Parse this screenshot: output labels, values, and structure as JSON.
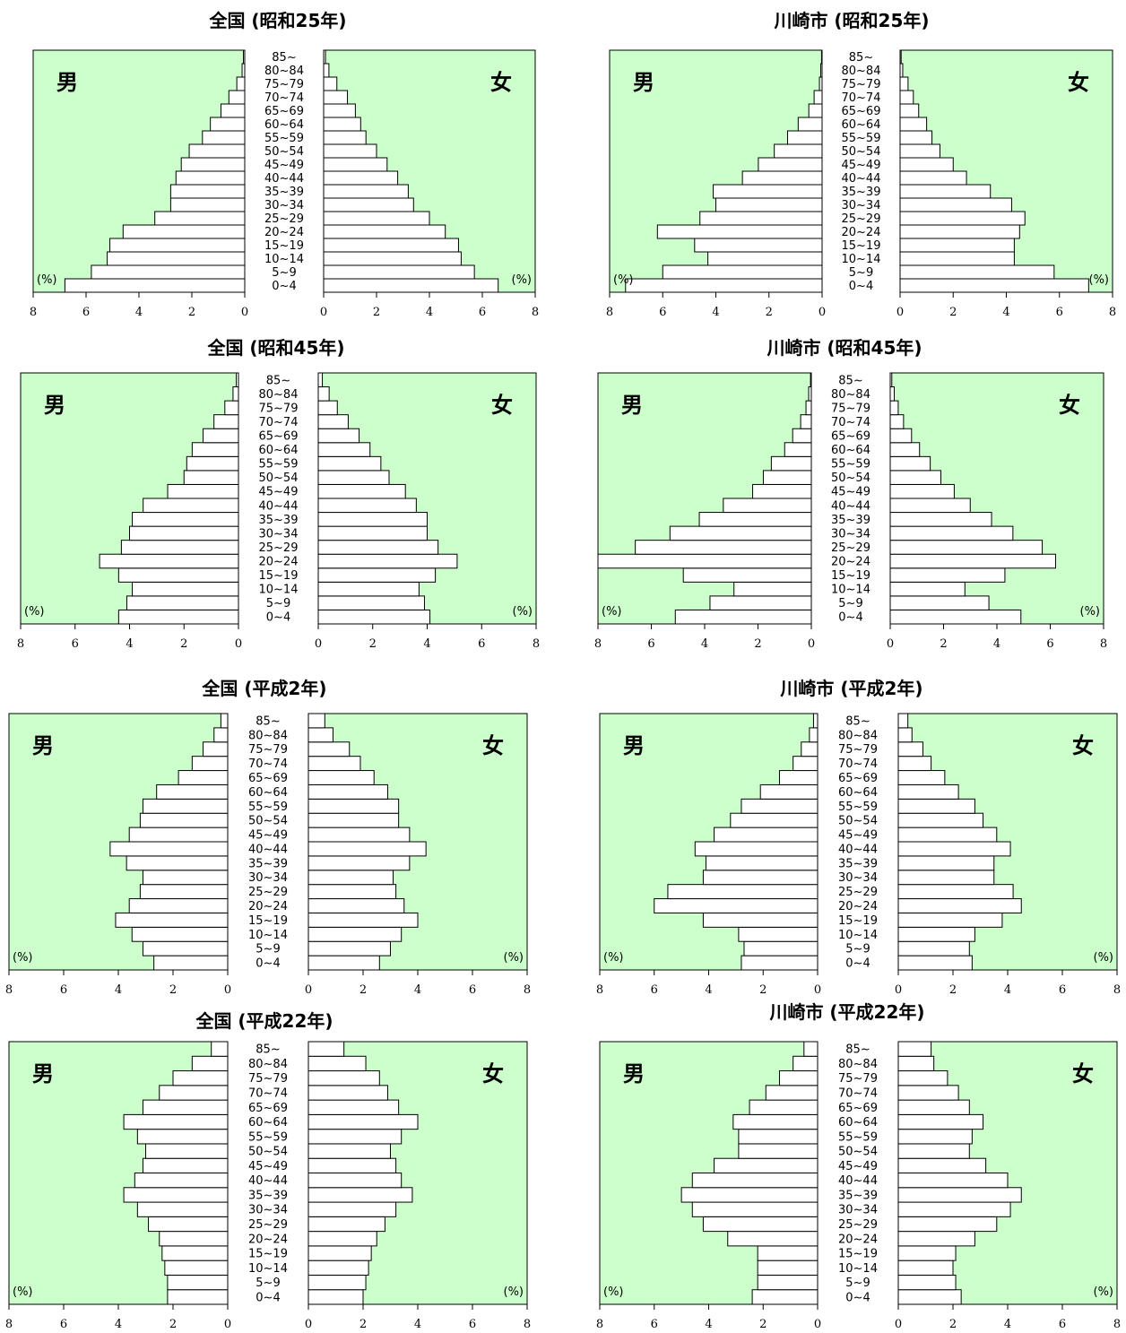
{
  "shared": {
    "age_groups": [
      "0~4",
      "5~9",
      "10~14",
      "15~19",
      "20~24",
      "25~29",
      "30~34",
      "35~39",
      "40~44",
      "45~49",
      "50~54",
      "55~59",
      "60~64",
      "65~69",
      "70~74",
      "75~79",
      "80~84",
      "85~"
    ],
    "male_label": "男",
    "female_label": "女",
    "unit_label": "(%)",
    "male_ticks": [
      "8",
      "6",
      "4",
      "2",
      "0"
    ],
    "female_ticks": [
      "0",
      "2",
      "4",
      "6",
      "8"
    ],
    "colors": {
      "background": "#ccffcc",
      "bar": "#ffffff",
      "line": "#000000"
    }
  },
  "chart_data": [
    {
      "type": "bar",
      "title": "全国 (昭和25年)",
      "xlim": [
        0,
        8
      ],
      "male": [
        6.8,
        5.8,
        5.2,
        5.1,
        4.6,
        3.4,
        2.8,
        2.8,
        2.6,
        2.4,
        2.1,
        1.6,
        1.3,
        0.9,
        0.6,
        0.3,
        0.1,
        0.05
      ],
      "female": [
        6.6,
        5.7,
        5.2,
        5.1,
        4.6,
        4.0,
        3.4,
        3.2,
        2.8,
        2.4,
        2.0,
        1.6,
        1.4,
        1.2,
        0.9,
        0.5,
        0.2,
        0.07
      ]
    },
    {
      "type": "bar",
      "title": "川崎市 (昭和25年)",
      "xlim": [
        0,
        8
      ],
      "male": [
        7.4,
        6.0,
        4.3,
        4.8,
        6.2,
        4.6,
        4.0,
        4.1,
        3.0,
        2.4,
        1.8,
        1.3,
        0.9,
        0.5,
        0.3,
        0.1,
        0.05,
        0.02
      ],
      "female": [
        7.1,
        5.8,
        4.3,
        4.3,
        4.5,
        4.7,
        4.2,
        3.4,
        2.5,
        2.0,
        1.5,
        1.2,
        1.0,
        0.7,
        0.5,
        0.3,
        0.1,
        0.04
      ]
    },
    {
      "type": "bar",
      "title": "全国 (昭和45年)",
      "xlim": [
        0,
        8
      ],
      "male": [
        4.4,
        4.1,
        3.9,
        4.4,
        5.1,
        4.3,
        4.0,
        3.9,
        3.5,
        2.6,
        2.0,
        1.9,
        1.7,
        1.3,
        0.9,
        0.5,
        0.2,
        0.08
      ],
      "female": [
        4.1,
        3.9,
        3.7,
        4.3,
        5.1,
        4.4,
        4.0,
        4.0,
        3.6,
        3.2,
        2.6,
        2.3,
        1.9,
        1.5,
        1.1,
        0.7,
        0.4,
        0.15
      ]
    },
    {
      "type": "bar",
      "title": "川崎市 (昭和45年)",
      "xlim": [
        0,
        8
      ],
      "male": [
        5.1,
        3.8,
        2.9,
        4.8,
        8.0,
        6.6,
        5.3,
        4.2,
        3.3,
        2.2,
        1.8,
        1.5,
        1.0,
        0.7,
        0.4,
        0.2,
        0.1,
        0.03
      ],
      "female": [
        4.9,
        3.7,
        2.8,
        4.3,
        6.2,
        5.7,
        4.6,
        3.8,
        3.0,
        2.4,
        1.9,
        1.5,
        1.1,
        0.8,
        0.5,
        0.3,
        0.15,
        0.06
      ]
    },
    {
      "type": "bar",
      "title": "全国 (平成2年)",
      "xlim": [
        0,
        8
      ],
      "male": [
        2.7,
        3.1,
        3.5,
        4.1,
        3.6,
        3.2,
        3.1,
        3.7,
        4.3,
        3.6,
        3.2,
        3.1,
        2.6,
        1.8,
        1.3,
        0.9,
        0.5,
        0.25
      ],
      "female": [
        2.6,
        3.0,
        3.4,
        4.0,
        3.5,
        3.2,
        3.1,
        3.7,
        4.3,
        3.7,
        3.3,
        3.3,
        2.9,
        2.4,
        1.9,
        1.5,
        0.9,
        0.6
      ]
    },
    {
      "type": "bar",
      "title": "川崎市 (平成2年)",
      "xlim": [
        0,
        8
      ],
      "male": [
        2.8,
        2.7,
        2.9,
        4.2,
        6.0,
        5.5,
        4.2,
        4.1,
        4.5,
        3.8,
        3.2,
        2.8,
        2.1,
        1.4,
        0.9,
        0.6,
        0.3,
        0.15
      ],
      "female": [
        2.7,
        2.6,
        2.8,
        3.8,
        4.5,
        4.2,
        3.5,
        3.5,
        4.1,
        3.6,
        3.1,
        2.8,
        2.2,
        1.7,
        1.2,
        0.9,
        0.5,
        0.35
      ]
    },
    {
      "type": "bar",
      "title": "全国 (平成22年)",
      "xlim": [
        0,
        8
      ],
      "male": [
        2.2,
        2.2,
        2.3,
        2.4,
        2.5,
        2.9,
        3.3,
        3.8,
        3.4,
        3.1,
        3.0,
        3.3,
        3.8,
        3.1,
        2.5,
        2.0,
        1.3,
        0.6
      ],
      "female": [
        2.0,
        2.1,
        2.2,
        2.3,
        2.5,
        2.8,
        3.2,
        3.8,
        3.4,
        3.2,
        3.0,
        3.4,
        4.0,
        3.3,
        2.9,
        2.6,
        2.1,
        1.3
      ]
    },
    {
      "type": "bar",
      "title": "川崎市 (平成22年)",
      "xlim": [
        0,
        8
      ],
      "male": [
        2.4,
        2.2,
        2.2,
        2.2,
        3.3,
        4.2,
        4.6,
        5.0,
        4.6,
        3.8,
        2.9,
        2.9,
        3.1,
        2.5,
        1.9,
        1.4,
        0.9,
        0.5
      ],
      "female": [
        2.3,
        2.1,
        2.0,
        2.1,
        2.8,
        3.6,
        4.1,
        4.5,
        4.0,
        3.2,
        2.6,
        2.7,
        3.1,
        2.6,
        2.2,
        1.8,
        1.3,
        1.2
      ]
    }
  ]
}
